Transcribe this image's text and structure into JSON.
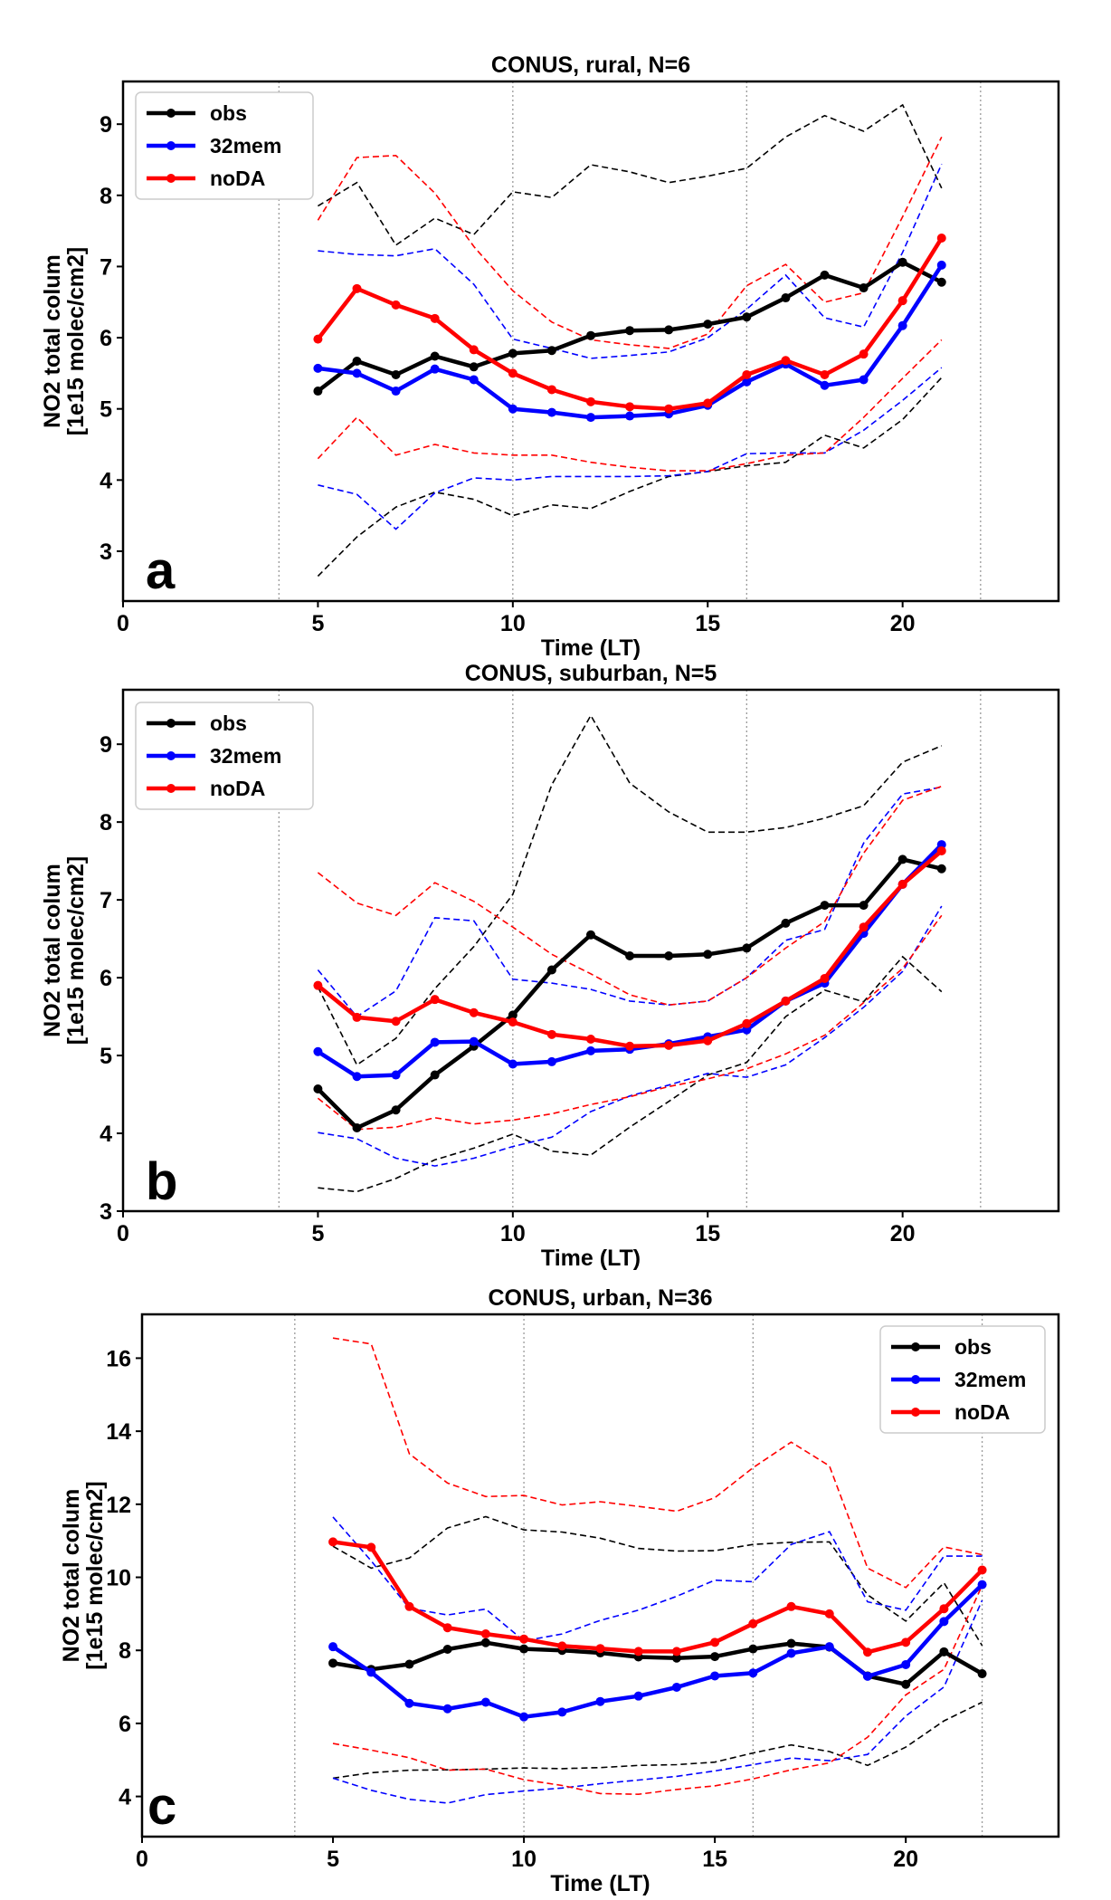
{
  "figure": {
    "colors": {
      "obs": "#000000",
      "32mem": "#0000ff",
      "noDA": "#ff0000"
    }
  },
  "chart_data": [
    {
      "type": "line",
      "panel": "a",
      "title": "CONUS, rural, N=6",
      "xlabel": "Time (LT)",
      "ylabel": [
        "NO2 total colum",
        "[1e15 molec/cm2]"
      ],
      "xlim": [
        0,
        24
      ],
      "ylim": [
        2.3,
        9.6
      ],
      "xticks": [
        0,
        5,
        10,
        15,
        20
      ],
      "yticks": [
        3,
        4,
        5,
        6,
        7,
        8,
        9
      ],
      "vlines": [
        4,
        10,
        16,
        22
      ],
      "legend_loc": "upper-left",
      "x": [
        5,
        6,
        7,
        8,
        9,
        10,
        11,
        12,
        13,
        14,
        15,
        16,
        17,
        18,
        19,
        20,
        21
      ],
      "series": [
        {
          "name": "obs",
          "color": "#000000",
          "values": [
            5.25,
            5.67,
            5.48,
            5.74,
            5.59,
            5.78,
            5.82,
            6.03,
            6.1,
            6.11,
            6.19,
            6.29,
            6.56,
            6.88,
            6.7,
            7.06,
            6.78
          ],
          "upper": [
            7.85,
            8.18,
            7.3,
            7.68,
            7.45,
            8.05,
            7.97,
            8.43,
            8.33,
            8.18,
            8.27,
            8.38,
            8.82,
            9.12,
            8.9,
            9.27,
            8.1
          ],
          "lower": [
            2.65,
            3.2,
            3.62,
            3.83,
            3.73,
            3.5,
            3.65,
            3.6,
            3.84,
            4.05,
            4.12,
            4.2,
            4.25,
            4.63,
            4.45,
            4.85,
            5.44
          ]
        },
        {
          "name": "32mem",
          "color": "#0000ff",
          "values": [
            5.57,
            5.5,
            5.25,
            5.56,
            5.41,
            5.0,
            4.95,
            4.88,
            4.9,
            4.93,
            5.05,
            5.38,
            5.63,
            5.33,
            5.41,
            6.17,
            7.02
          ],
          "upper": [
            7.22,
            7.17,
            7.15,
            7.25,
            6.75,
            5.98,
            5.85,
            5.71,
            5.75,
            5.8,
            6.0,
            6.4,
            6.88,
            6.28,
            6.15,
            7.2,
            8.44
          ],
          "lower": [
            3.93,
            3.8,
            3.31,
            3.82,
            4.03,
            4.0,
            4.05,
            4.05,
            4.05,
            4.06,
            4.12,
            4.37,
            4.38,
            4.38,
            4.7,
            5.12,
            5.58
          ]
        },
        {
          "name": "noDA",
          "color": "#ff0000",
          "values": [
            5.98,
            6.69,
            6.46,
            6.27,
            5.83,
            5.5,
            5.27,
            5.1,
            5.03,
            5.0,
            5.08,
            5.48,
            5.68,
            5.48,
            5.77,
            6.52,
            7.4
          ],
          "upper": [
            7.65,
            8.53,
            8.56,
            8.03,
            7.28,
            6.66,
            6.22,
            5.97,
            5.9,
            5.85,
            6.05,
            6.73,
            7.03,
            6.5,
            6.63,
            7.7,
            8.82
          ],
          "lower": [
            4.3,
            4.88,
            4.35,
            4.5,
            4.38,
            4.35,
            4.35,
            4.25,
            4.18,
            4.13,
            4.13,
            4.23,
            4.35,
            4.38,
            4.88,
            5.43,
            5.97
          ]
        }
      ]
    },
    {
      "type": "line",
      "panel": "b",
      "title": "CONUS, suburban, N=5",
      "xlabel": "Time (LT)",
      "ylabel": [
        "NO2 total colum",
        "[1e15 molec/cm2]"
      ],
      "xlim": [
        0,
        24
      ],
      "ylim": [
        3.0,
        9.7
      ],
      "xticks": [
        0,
        5,
        10,
        15,
        20
      ],
      "yticks": [
        3,
        4,
        5,
        6,
        7,
        8,
        9
      ],
      "vlines": [
        4,
        10,
        16,
        22
      ],
      "legend_loc": "upper-left",
      "x": [
        5,
        6,
        7,
        8,
        9,
        10,
        11,
        12,
        13,
        14,
        15,
        16,
        17,
        18,
        19,
        20,
        21
      ],
      "series": [
        {
          "name": "obs",
          "color": "#000000",
          "values": [
            4.57,
            4.07,
            4.3,
            4.75,
            5.12,
            5.52,
            6.1,
            6.55,
            6.28,
            6.28,
            6.3,
            6.38,
            6.7,
            6.93,
            6.93,
            7.52,
            7.4
          ],
          "upper": [
            5.88,
            4.88,
            5.22,
            5.86,
            6.4,
            7.07,
            8.48,
            9.37,
            8.5,
            8.13,
            7.87,
            7.87,
            7.93,
            8.05,
            8.21,
            8.77,
            8.98
          ],
          "lower": [
            3.3,
            3.25,
            3.42,
            3.66,
            3.81,
            3.99,
            3.77,
            3.72,
            4.08,
            4.41,
            4.75,
            4.91,
            5.5,
            5.84,
            5.69,
            6.27,
            5.82
          ]
        },
        {
          "name": "32mem",
          "color": "#0000ff",
          "values": [
            5.05,
            4.73,
            4.75,
            5.17,
            5.18,
            4.89,
            4.92,
            5.06,
            5.08,
            5.15,
            5.24,
            5.33,
            5.7,
            5.93,
            6.57,
            7.2,
            7.71
          ],
          "upper": [
            6.1,
            5.5,
            5.83,
            6.77,
            6.73,
            5.98,
            5.93,
            5.85,
            5.7,
            5.65,
            5.7,
            6.0,
            6.48,
            6.62,
            7.73,
            8.36,
            8.45
          ],
          "lower": [
            4.01,
            3.93,
            3.68,
            3.58,
            3.68,
            3.83,
            3.95,
            4.28,
            4.48,
            4.62,
            4.77,
            4.72,
            4.88,
            5.23,
            5.62,
            6.08,
            6.92
          ]
        },
        {
          "name": "noDA",
          "color": "#ff0000",
          "values": [
            5.9,
            5.49,
            5.44,
            5.72,
            5.55,
            5.43,
            5.27,
            5.21,
            5.12,
            5.13,
            5.19,
            5.41,
            5.7,
            5.99,
            6.65,
            7.2,
            7.63
          ],
          "upper": [
            7.35,
            6.96,
            6.8,
            7.22,
            6.98,
            6.65,
            6.3,
            6.05,
            5.78,
            5.65,
            5.7,
            6.0,
            6.38,
            6.72,
            7.6,
            8.28,
            8.46
          ],
          "lower": [
            4.45,
            4.05,
            4.08,
            4.2,
            4.12,
            4.17,
            4.25,
            4.37,
            4.47,
            4.6,
            4.7,
            4.83,
            5.02,
            5.26,
            5.68,
            6.12,
            6.8
          ]
        }
      ]
    },
    {
      "type": "line",
      "panel": "c",
      "title": "CONUS, urban, N=36",
      "xlabel": "Time (LT)",
      "ylabel": [
        "NO2 total colum",
        "[1e15 molec/cm2]"
      ],
      "xlim": [
        0,
        24
      ],
      "ylim": [
        2.9,
        17.2
      ],
      "xticks": [
        0,
        5,
        10,
        15,
        20
      ],
      "yticks": [
        4,
        6,
        8,
        10,
        12,
        14,
        16
      ],
      "vlines": [
        4,
        10,
        16,
        22
      ],
      "legend_loc": "upper-right",
      "x": [
        5,
        6,
        7,
        8,
        9,
        10,
        11,
        12,
        13,
        14,
        15,
        16,
        17,
        18,
        19,
        20,
        21,
        22
      ],
      "series": [
        {
          "name": "obs",
          "color": "#000000",
          "values": [
            7.65,
            7.48,
            7.62,
            8.03,
            8.21,
            8.04,
            8.0,
            7.93,
            7.82,
            7.79,
            7.83,
            8.04,
            8.19,
            8.09,
            7.3,
            7.07,
            7.96,
            7.36
          ],
          "upper": [
            10.85,
            10.25,
            10.53,
            11.35,
            11.66,
            11.3,
            11.24,
            11.07,
            10.79,
            10.72,
            10.73,
            10.9,
            10.96,
            10.97,
            9.52,
            8.8,
            9.85,
            8.13
          ],
          "lower": [
            4.5,
            4.65,
            4.72,
            4.73,
            4.75,
            4.78,
            4.76,
            4.79,
            4.85,
            4.87,
            4.94,
            5.19,
            5.41,
            5.23,
            4.85,
            5.35,
            6.07,
            6.58
          ]
        },
        {
          "name": "32mem",
          "color": "#0000ff",
          "values": [
            8.1,
            7.4,
            6.55,
            6.4,
            6.58,
            6.18,
            6.31,
            6.6,
            6.75,
            6.99,
            7.3,
            7.38,
            7.92,
            8.1,
            7.29,
            7.61,
            8.79,
            9.8
          ],
          "upper": [
            11.65,
            10.45,
            9.15,
            8.97,
            9.13,
            8.26,
            8.45,
            8.82,
            9.1,
            9.48,
            9.92,
            9.88,
            10.9,
            11.25,
            9.33,
            9.1,
            10.58,
            10.58
          ],
          "lower": [
            4.5,
            4.17,
            3.92,
            3.82,
            4.05,
            4.15,
            4.23,
            4.35,
            4.45,
            4.55,
            4.7,
            4.87,
            5.05,
            4.98,
            5.15,
            6.2,
            7.0,
            9.37
          ]
        },
        {
          "name": "noDA",
          "color": "#ff0000",
          "values": [
            10.97,
            10.82,
            9.2,
            8.62,
            8.45,
            8.31,
            8.12,
            8.05,
            7.97,
            7.97,
            8.22,
            8.73,
            9.2,
            9.0,
            7.95,
            8.22,
            9.14,
            10.2
          ],
          "upper": [
            16.55,
            16.39,
            13.38,
            12.58,
            12.21,
            12.24,
            11.98,
            12.07,
            11.94,
            11.81,
            12.18,
            13.0,
            13.7,
            13.05,
            10.25,
            9.72,
            10.83,
            10.62
          ],
          "lower": [
            5.45,
            5.27,
            5.06,
            4.72,
            4.75,
            4.46,
            4.3,
            4.08,
            4.06,
            4.19,
            4.29,
            4.48,
            4.73,
            4.92,
            5.62,
            6.78,
            7.48,
            9.78
          ]
        }
      ]
    }
  ]
}
